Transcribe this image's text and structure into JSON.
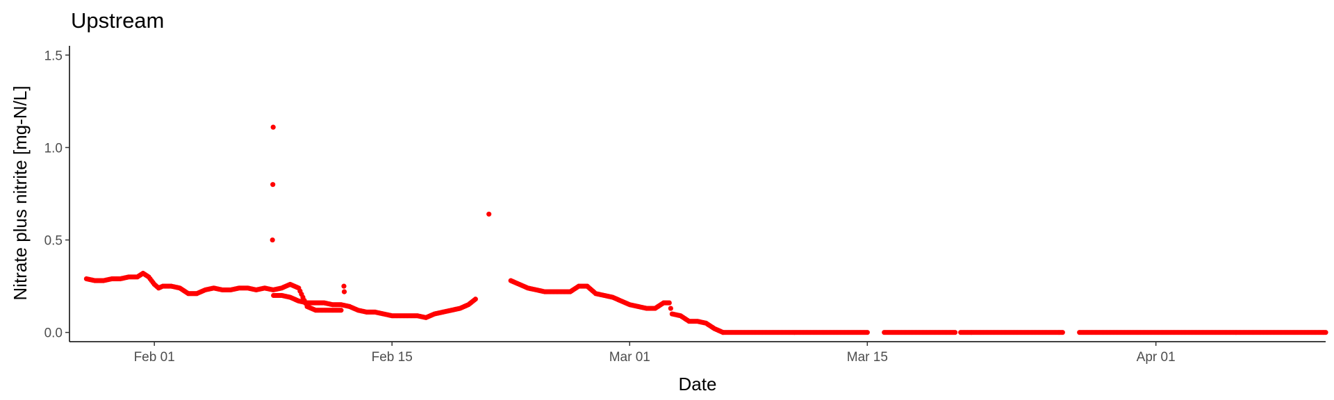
{
  "chart_data": {
    "type": "scatter",
    "title": "Upstream",
    "xlabel": "Date",
    "ylabel": "Nitrate plus nitrite [mg-N/L]",
    "x_type": "date",
    "xlim": [
      "2019-01-27",
      "2019-04-11"
    ],
    "ylim": [
      -0.05,
      1.55
    ],
    "x_ticks": [
      {
        "date": "2019-02-01",
        "label": "Feb 01"
      },
      {
        "date": "2019-02-15",
        "label": "Feb 15"
      },
      {
        "date": "2019-03-01",
        "label": "Mar 01"
      },
      {
        "date": "2019-03-15",
        "label": "Mar 15"
      },
      {
        "date": "2019-04-01",
        "label": "Apr 01"
      }
    ],
    "y_ticks": [
      {
        "value": 0.0,
        "label": "0.0"
      },
      {
        "value": 0.5,
        "label": "0.5"
      },
      {
        "value": 1.0,
        "label": "1.0"
      },
      {
        "value": 1.5,
        "label": "1.5"
      }
    ],
    "point_color": "#ff0000",
    "grid": false,
    "series": [
      {
        "points": [
          [
            "2019-01-28T00:00",
            0.29
          ],
          [
            "2019-01-28T12:00",
            0.28
          ],
          [
            "2019-01-29T00:00",
            0.28
          ],
          [
            "2019-01-29T12:00",
            0.29
          ],
          [
            "2019-01-30T00:00",
            0.29
          ],
          [
            "2019-01-30T12:00",
            0.3
          ],
          [
            "2019-01-31T00:00",
            0.3
          ],
          [
            "2019-01-31T08:00",
            0.32
          ],
          [
            "2019-01-31T16:00",
            0.3
          ],
          [
            "2019-02-01T00:00",
            0.26
          ],
          [
            "2019-02-01T06:00",
            0.24
          ],
          [
            "2019-02-01T12:00",
            0.25
          ],
          [
            "2019-02-02T00:00",
            0.25
          ],
          [
            "2019-02-02T12:00",
            0.24
          ],
          [
            "2019-02-03T00:00",
            0.21
          ],
          [
            "2019-02-03T12:00",
            0.21
          ],
          [
            "2019-02-04T00:00",
            0.23
          ],
          [
            "2019-02-04T12:00",
            0.24
          ],
          [
            "2019-02-05T00:00",
            0.23
          ],
          [
            "2019-02-05T12:00",
            0.23
          ],
          [
            "2019-02-06T00:00",
            0.24
          ],
          [
            "2019-02-06T12:00",
            0.24
          ],
          [
            "2019-02-07T00:00",
            0.23
          ],
          [
            "2019-02-07T12:00",
            0.24
          ],
          [
            "2019-02-08T00:00",
            0.23
          ],
          [
            "2019-02-08T12:00",
            0.24
          ],
          [
            "2019-02-09T00:00",
            0.26
          ],
          [
            "2019-02-09T06:00",
            0.25
          ],
          [
            "2019-02-09T12:00",
            0.24
          ],
          [
            "2019-02-09T18:00",
            0.19
          ],
          [
            "2019-02-10T00:00",
            0.14
          ],
          [
            "2019-02-10T12:00",
            0.12
          ],
          [
            "2019-02-11T00:00",
            0.12
          ],
          [
            "2019-02-11T12:00",
            0.12
          ],
          [
            "2019-02-12T00:00",
            0.12
          ],
          [
            "2019-02-12T04:00",
            0.25
          ],
          [
            "2019-02-12T04:30",
            0.22
          ],
          [
            "2019-02-07T23:00",
            0.5
          ],
          [
            "2019-02-07T23:30",
            0.8
          ],
          [
            "2019-02-08T00:00",
            1.11
          ],
          [
            "2019-02-08T00:30",
            0.2
          ],
          [
            "2019-02-08T12:00",
            0.2
          ],
          [
            "2019-02-09T00:00",
            0.19
          ],
          [
            "2019-02-09T12:00",
            0.17
          ],
          [
            "2019-02-10T00:00",
            0.16
          ],
          [
            "2019-02-10T12:00",
            0.16
          ],
          [
            "2019-02-11T00:00",
            0.16
          ],
          [
            "2019-02-11T12:00",
            0.15
          ],
          [
            "2019-02-12T00:00",
            0.15
          ],
          [
            "2019-02-12T12:00",
            0.14
          ],
          [
            "2019-02-13T00:00",
            0.12
          ],
          [
            "2019-02-13T12:00",
            0.11
          ],
          [
            "2019-02-14T00:00",
            0.11
          ],
          [
            "2019-02-14T12:00",
            0.1
          ],
          [
            "2019-02-15T00:00",
            0.09
          ],
          [
            "2019-02-15T12:00",
            0.09
          ],
          [
            "2019-02-16T00:00",
            0.09
          ],
          [
            "2019-02-16T12:00",
            0.09
          ],
          [
            "2019-02-17T00:00",
            0.08
          ],
          [
            "2019-02-17T12:00",
            0.1
          ],
          [
            "2019-02-18T00:00",
            0.11
          ],
          [
            "2019-02-18T12:00",
            0.12
          ],
          [
            "2019-02-19T00:00",
            0.13
          ],
          [
            "2019-02-19T12:00",
            0.15
          ],
          [
            "2019-02-19T22:00",
            0.18
          ],
          [
            "2019-02-20T17:00",
            0.64
          ],
          [
            "2019-02-22T00:00",
            0.28
          ],
          [
            "2019-02-22T12:00",
            0.26
          ],
          [
            "2019-02-23T00:00",
            0.24
          ],
          [
            "2019-02-23T12:00",
            0.23
          ],
          [
            "2019-02-24T00:00",
            0.22
          ],
          [
            "2019-02-24T12:00",
            0.22
          ],
          [
            "2019-02-25T00:00",
            0.22
          ],
          [
            "2019-02-25T12:00",
            0.22
          ],
          [
            "2019-02-26T00:00",
            0.25
          ],
          [
            "2019-02-26T12:00",
            0.25
          ],
          [
            "2019-02-27T00:00",
            0.21
          ],
          [
            "2019-02-27T12:00",
            0.2
          ],
          [
            "2019-02-28T00:00",
            0.19
          ],
          [
            "2019-02-28T12:00",
            0.17
          ],
          [
            "2019-03-01T00:00",
            0.15
          ],
          [
            "2019-03-01T12:00",
            0.14
          ],
          [
            "2019-03-02T00:00",
            0.13
          ],
          [
            "2019-03-02T12:00",
            0.13
          ],
          [
            "2019-03-03T00:00",
            0.16
          ],
          [
            "2019-03-03T08:00",
            0.16
          ],
          [
            "2019-03-03T12:00",
            0.1
          ],
          [
            "2019-03-04T00:00",
            0.09
          ],
          [
            "2019-03-04T12:00",
            0.06
          ],
          [
            "2019-03-05T00:00",
            0.06
          ],
          [
            "2019-03-05T12:00",
            0.05
          ],
          [
            "2019-03-06T00:00",
            0.02
          ],
          [
            "2019-03-06T12:00",
            0.0
          ]
        ],
        "zero_segments": [
          [
            "2019-03-06T12:00",
            "2019-03-15T00:00"
          ],
          [
            "2019-03-16T00:00",
            "2019-03-20T04:00"
          ],
          [
            "2019-03-20T12:00",
            "2019-03-26T12:00"
          ],
          [
            "2019-03-27T12:00",
            "2019-04-11T00:00"
          ]
        ]
      }
    ]
  }
}
